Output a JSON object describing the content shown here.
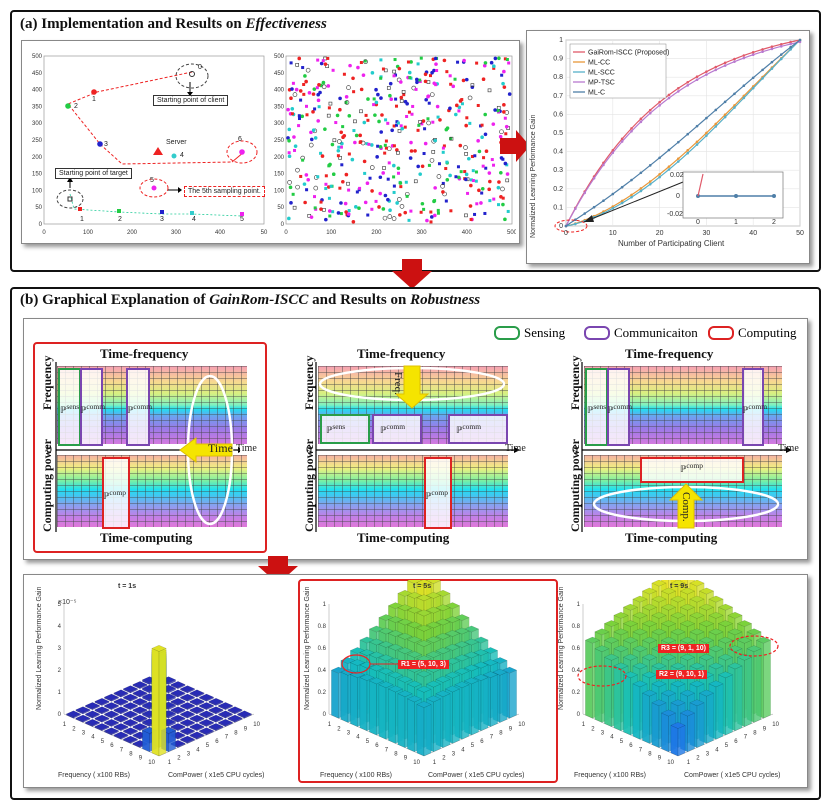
{
  "panel_a": {
    "title_prefix": "(a) Implementation and Results on ",
    "title_em": "Effectiveness",
    "map": {
      "ticks_y": [
        "500",
        "450",
        "400",
        "350",
        "300",
        "250",
        "200",
        "150",
        "100",
        "50",
        "0"
      ],
      "ticks_x": [
        "0",
        "100",
        "200",
        "300",
        "400",
        "50"
      ],
      "point_labels": [
        "0",
        "1",
        "2",
        "3",
        "4",
        "5",
        "6",
        "1",
        "2",
        "3",
        "4",
        "5"
      ],
      "annotations": {
        "client": "Starting point of client",
        "server": "Server",
        "target": "Starting point of target",
        "fifth": "The 5th sampling point."
      }
    },
    "scatter": {
      "ticks_y": [
        "500",
        "450",
        "400",
        "350",
        "300",
        "250",
        "200",
        "150",
        "100",
        "50",
        "0"
      ],
      "ticks_x": [
        "0",
        "100",
        "200",
        "300",
        "400",
        "500"
      ]
    },
    "chart": {
      "ylabel": "Normalized Learning Performance Gain",
      "xlabel": "Number of Participating Client",
      "ticks_y": [
        "1",
        "0.9",
        "0.8",
        "0.7",
        "0.6",
        "0.5",
        "0.4",
        "0.3",
        "0.2",
        "0.1",
        "0"
      ],
      "ticks_x": [
        "0",
        "10",
        "20",
        "30",
        "40",
        "50"
      ],
      "legend": [
        "GaiRom-ISCC (Proposed)",
        "ML-CC",
        "ML-SCC",
        "MP-TSC",
        "ML-C"
      ],
      "colors": [
        "#e05a6a",
        "#e8973a",
        "#58b0c8",
        "#b87ad0",
        "#4f7fa8"
      ],
      "inset_ticks_y": [
        "0.02",
        "0",
        "-0.02"
      ],
      "inset_ticks_x": [
        "0",
        "1",
        "2"
      ]
    }
  },
  "panel_b": {
    "title_prefix": "(b)  Graphical Explanation of ",
    "title_em1": "GainRom-ISCC",
    "title_mid": " and Results on ",
    "title_em2": "Robustness",
    "legend": {
      "sensing": "Sensing",
      "comm": "Communicaiton",
      "computing": "Computing",
      "c_sensing": "#2a9d4a",
      "c_comm": "#7a46b0",
      "c_computing": "#d22"
    },
    "diagram": {
      "tf": "Time-frequency",
      "tc": "Time-computing",
      "freq": "Frequency",
      "cp": "Computing power",
      "zero": "0",
      "time": "Time",
      "arrow_time": "Time",
      "arrow_freq": "Freq.",
      "arrow_comp": "Comp.",
      "sens": "ℙ",
      "sens_sup": "sens",
      "comm_sup": "comm",
      "comp_sup": "comp",
      "sub": "r,n"
    },
    "bars": [
      {
        "title": "t = 1s",
        "zlabel": "Normalized Learning Performance Gain",
        "xlabel": "Frequency ( x100 RBs)",
        "ylabel": "ComPower ( x1e5 CPU cycles)",
        "exp": "×10⁻⁵",
        "ticks_z": [
          "5",
          "4",
          "3",
          "2",
          "1",
          "0"
        ]
      },
      {
        "title": "t = 5s",
        "zlabel": "Normalized Learning Performance Gain",
        "xlabel": "Frequency ( x100 RBs)",
        "ylabel": "ComPower ( x1e5 CPU cycles)",
        "annot": "R1 = (5, 10, 3)",
        "ticks_z": [
          "1",
          "0.8",
          "0.6",
          "0.4",
          "0.2",
          "0"
        ]
      },
      {
        "title": "t = 9s",
        "zlabel": "Normalized Learning Performance Gain",
        "xlabel": "Frequency ( x100 RBs)",
        "ylabel": "ComPower ( x1e5 CPU cycles)",
        "annot1": "R3 = (9, 1, 10)",
        "annot2": "R2 = (9, 10, 1)",
        "ticks_z": [
          "1",
          "0.8",
          "0.6",
          "0.4",
          "0.2",
          "0"
        ]
      }
    ],
    "bar_axis_ticks": [
      "10",
      "9",
      "8",
      "7",
      "6",
      "5",
      "4",
      "3",
      "2",
      "1"
    ]
  }
}
